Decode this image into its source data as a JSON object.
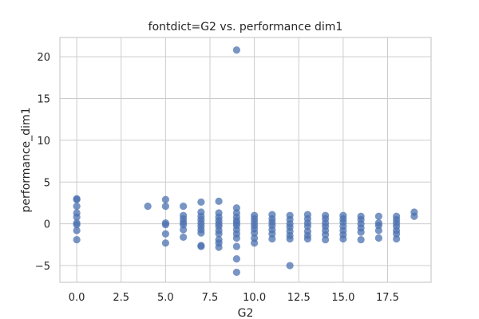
{
  "chart_data": {
    "type": "scatter",
    "title": "fontdict=G2 vs. performance dim1",
    "xlabel": "G2",
    "ylabel": "performance_dim1",
    "xlim": [
      -0.95,
      19.95
    ],
    "ylim": [
      -7.0,
      22.3
    ],
    "xticks": [
      0.0,
      2.5,
      5.0,
      7.5,
      10.0,
      12.5,
      15.0,
      17.5
    ],
    "xtick_labels": [
      "0.0",
      "2.5",
      "5.0",
      "7.5",
      "10.0",
      "12.5",
      "15.0",
      "17.5"
    ],
    "yticks": [
      -5,
      0,
      5,
      10,
      15,
      20
    ],
    "ytick_labels": [
      "−5",
      "0",
      "5",
      "10",
      "15",
      "20"
    ],
    "grid": true,
    "marker_color": "#4c72b0",
    "marker_alpha": 0.75,
    "points": [
      [
        0,
        3.0
      ],
      [
        0,
        2.9
      ],
      [
        0,
        2.1
      ],
      [
        0,
        1.3
      ],
      [
        0,
        0.8
      ],
      [
        0,
        0.1
      ],
      [
        0,
        -0.1
      ],
      [
        0,
        -0.8
      ],
      [
        0,
        -1.9
      ],
      [
        4,
        2.1
      ],
      [
        5,
        2.9
      ],
      [
        5,
        2.1
      ],
      [
        5,
        0.1
      ],
      [
        5,
        -0.1
      ],
      [
        5,
        -1.2
      ],
      [
        5,
        -2.3
      ],
      [
        6,
        2.1
      ],
      [
        6,
        1.0
      ],
      [
        6,
        0.6
      ],
      [
        6,
        0.2
      ],
      [
        6,
        -0.1
      ],
      [
        6,
        -0.7
      ],
      [
        6,
        -1.6
      ],
      [
        7,
        2.6
      ],
      [
        7,
        1.4
      ],
      [
        7,
        0.9
      ],
      [
        7,
        0.5
      ],
      [
        7,
        0.1
      ],
      [
        7,
        -0.3
      ],
      [
        7,
        -0.7
      ],
      [
        7,
        -1.1
      ],
      [
        7,
        -2.6
      ],
      [
        7,
        -2.7
      ],
      [
        8,
        2.7
      ],
      [
        8,
        1.3
      ],
      [
        8,
        0.8
      ],
      [
        8,
        0.4
      ],
      [
        8,
        0.0
      ],
      [
        8,
        -0.3
      ],
      [
        8,
        -0.8
      ],
      [
        8,
        -1.2
      ],
      [
        8,
        -1.9
      ],
      [
        8,
        -2.3
      ],
      [
        8,
        -2.8
      ],
      [
        9,
        20.8
      ],
      [
        9,
        1.9
      ],
      [
        9,
        1.3
      ],
      [
        9,
        0.8
      ],
      [
        9,
        0.4
      ],
      [
        9,
        0.1
      ],
      [
        9,
        -0.2
      ],
      [
        9,
        -0.7
      ],
      [
        9,
        -1.2
      ],
      [
        9,
        -1.7
      ],
      [
        9,
        -2.7
      ],
      [
        9,
        -4.2
      ],
      [
        9,
        -5.8
      ],
      [
        10,
        1.0
      ],
      [
        10,
        0.6
      ],
      [
        10,
        0.2
      ],
      [
        10,
        -0.2
      ],
      [
        10,
        -0.6
      ],
      [
        10,
        -1.1
      ],
      [
        10,
        -1.7
      ],
      [
        10,
        -2.3
      ],
      [
        11,
        1.1
      ],
      [
        11,
        0.6
      ],
      [
        11,
        0.2
      ],
      [
        11,
        -0.2
      ],
      [
        11,
        -0.7
      ],
      [
        11,
        -1.2
      ],
      [
        11,
        -1.8
      ],
      [
        12,
        1.0
      ],
      [
        12,
        0.5
      ],
      [
        12,
        0.0
      ],
      [
        12,
        -0.4
      ],
      [
        12,
        -0.9
      ],
      [
        12,
        -1.4
      ],
      [
        12,
        -1.8
      ],
      [
        12,
        -5.0
      ],
      [
        13,
        1.1
      ],
      [
        13,
        0.6
      ],
      [
        13,
        0.1
      ],
      [
        13,
        -0.3
      ],
      [
        13,
        -0.9
      ],
      [
        13,
        -1.4
      ],
      [
        13,
        -1.8
      ],
      [
        14,
        1.0
      ],
      [
        14,
        0.6
      ],
      [
        14,
        0.1
      ],
      [
        14,
        -0.3
      ],
      [
        14,
        -0.8
      ],
      [
        14,
        -1.3
      ],
      [
        14,
        -1.9
      ],
      [
        15,
        1.0
      ],
      [
        15,
        0.6
      ],
      [
        15,
        0.2
      ],
      [
        15,
        -0.3
      ],
      [
        15,
        -0.8
      ],
      [
        15,
        -1.3
      ],
      [
        15,
        -1.8
      ],
      [
        16,
        0.9
      ],
      [
        16,
        0.5
      ],
      [
        16,
        0.0
      ],
      [
        16,
        -0.5
      ],
      [
        16,
        -1.0
      ],
      [
        16,
        -1.9
      ],
      [
        17,
        0.9
      ],
      [
        17,
        0.1
      ],
      [
        17,
        -0.2
      ],
      [
        17,
        -0.8
      ],
      [
        17,
        -1.7
      ],
      [
        18,
        0.9
      ],
      [
        18,
        0.5
      ],
      [
        18,
        0.1
      ],
      [
        18,
        -0.3
      ],
      [
        18,
        -0.8
      ],
      [
        18,
        -1.2
      ],
      [
        18,
        -1.8
      ],
      [
        19,
        1.4
      ],
      [
        19,
        0.9
      ]
    ]
  }
}
